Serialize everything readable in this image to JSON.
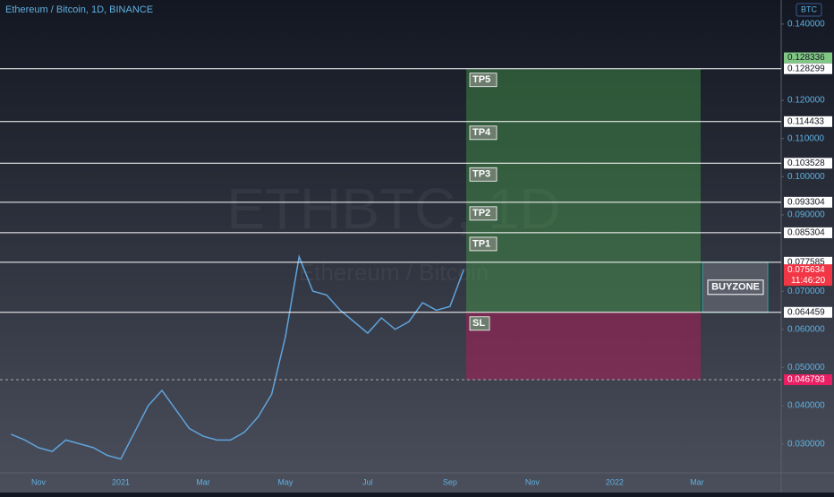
{
  "chart_data": {
    "type": "line",
    "title": "Ethereum / Bitcoin, 1D, BINANCE",
    "watermark": "ETHBTC, 1D",
    "watermark_sub": "Ethereum / Bitcoin",
    "currency": "BTC",
    "color": "#5fa3dc",
    "categories": [
      null,
      null,
      "Nov",
      null,
      null,
      null,
      null,
      null,
      "2021",
      null,
      null,
      null,
      null,
      null,
      "Mar",
      null,
      null,
      null,
      null,
      null,
      "May",
      null,
      null,
      null,
      null,
      null,
      "Jul",
      null,
      null,
      null,
      null,
      null,
      "Sep",
      null,
      null,
      null,
      null,
      null,
      "Nov",
      null,
      null,
      null,
      null,
      null,
      "2022",
      null,
      null,
      null,
      null,
      null,
      "Mar",
      null,
      null,
      null,
      null,
      null,
      null
    ],
    "values": [
      0.0325,
      0.031,
      0.029,
      0.028,
      0.031,
      0.03,
      0.029,
      0.027,
      0.026,
      0.033,
      0.04,
      0.044,
      0.039,
      0.034,
      0.032,
      0.031,
      0.031,
      0.033,
      0.037,
      0.043,
      0.058,
      0.079,
      0.07,
      0.069,
      0.065,
      0.062,
      0.059,
      0.063,
      0.06,
      0.062,
      0.067,
      0.065,
      0.066,
      0.075634,
      null,
      null,
      null,
      null,
      null,
      null,
      null,
      null,
      null,
      null,
      null,
      null,
      null,
      null,
      null,
      null,
      null,
      null,
      null,
      null,
      null,
      null,
      null
    ],
    "ylim": [
      0.0224,
      0.1463
    ],
    "yticks": [
      {
        "value": 0.14,
        "label": "0.140000"
      },
      {
        "value": 0.12,
        "label": "0.120000"
      },
      {
        "value": 0.11,
        "label": "0.110000"
      },
      {
        "value": 0.1,
        "label": "0.100000"
      },
      {
        "value": 0.09,
        "label": "0.090000"
      },
      {
        "value": 0.07,
        "label": "0.070000"
      },
      {
        "value": 0.06,
        "label": "0.060000"
      },
      {
        "value": 0.05,
        "label": "0.050000"
      },
      {
        "value": 0.04,
        "label": "0.040000"
      },
      {
        "value": 0.03,
        "label": "0.030000"
      }
    ],
    "levels": [
      {
        "value": 0.128299,
        "tag": "TP5"
      },
      {
        "value": 0.114433,
        "tag": "TP4"
      },
      {
        "value": 0.103528,
        "tag": "TP3"
      },
      {
        "value": 0.093304,
        "tag": "TP2"
      },
      {
        "value": 0.085304,
        "tag": "TP1"
      },
      {
        "value": 0.077585,
        "tag": "BUYZONE"
      },
      {
        "value": 0.064459,
        "tag": "SL"
      },
      {
        "value": 0.046793
      }
    ],
    "high_marker": 0.128336,
    "last_price": {
      "value": 0.075634,
      "countdown": "11:46:20"
    }
  }
}
